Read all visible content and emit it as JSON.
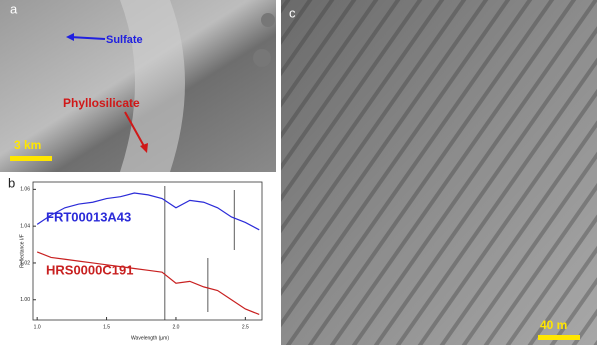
{
  "panel_a": {
    "label": "a",
    "annotations": [
      "Sulfate",
      "Phyllosilicate"
    ],
    "scale_bar": "3 km"
  },
  "panel_c": {
    "label": "c",
    "scale_bar": "40 m"
  },
  "chart_data": {
    "type": "line",
    "panel_label": "b",
    "x_label": "Wavelength (µm)",
    "y_label": "Reflectance I/F",
    "x": [
      1.0,
      1.1,
      1.2,
      1.3,
      1.4,
      1.5,
      1.6,
      1.7,
      1.8,
      1.9,
      2.0,
      2.1,
      2.2,
      2.3,
      2.4,
      2.5,
      2.6
    ],
    "series": [
      {
        "name": "FRT00013A43",
        "color": "#2b2bd8",
        "values": [
          1.041,
          1.046,
          1.05,
          1.052,
          1.053,
          1.055,
          1.056,
          1.058,
          1.057,
          1.055,
          1.05,
          1.054,
          1.053,
          1.05,
          1.045,
          1.042,
          1.038
        ]
      },
      {
        "name": "HRS0000C191",
        "color": "#c82020",
        "values": [
          1.026,
          1.023,
          1.022,
          1.021,
          1.02,
          1.019,
          1.018,
          1.017,
          1.016,
          1.015,
          1.009,
          1.01,
          1.007,
          1.005,
          1.0,
          0.995,
          0.992
        ]
      }
    ],
    "vlines": [
      1.92,
      2.23,
      2.42
    ],
    "xlim": [
      0.97,
      2.62
    ],
    "xticks": [
      {
        "value": 1,
        "label": "1.0"
      },
      {
        "value": 1.5,
        "label": "1.5"
      },
      {
        "value": 2,
        "label": "2.0"
      },
      {
        "value": 2.5,
        "label": "2.5"
      }
    ],
    "ylim": [
      0.989,
      1.064
    ],
    "yticks": [
      {
        "value": 1,
        "label": "1.00"
      },
      {
        "value": 1.02,
        "label": "1.02"
      },
      {
        "value": 1.04,
        "label": "1.04"
      },
      {
        "value": 1.06,
        "label": "1.06"
      }
    ]
  }
}
